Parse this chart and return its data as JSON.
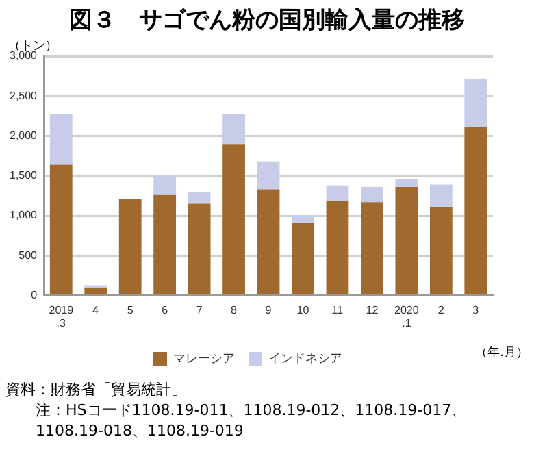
{
  "chart_data": {
    "type": "bar",
    "title": "図３　サゴでん粉の国別輸入量の推移",
    "ylabel": "（トン）",
    "xlabel": "（年.月）",
    "categories": [
      "2019\n.3",
      "4",
      "5",
      "6",
      "7",
      "8",
      "9",
      "10",
      "11",
      "12",
      "2020\n.1",
      "2",
      "3"
    ],
    "stacked": true,
    "series": [
      {
        "name": "マレーシア",
        "color": "#a0692e",
        "values": [
          1640,
          90,
          1210,
          1260,
          1150,
          1890,
          1330,
          910,
          1180,
          1170,
          1360,
          1110,
          2110
        ]
      },
      {
        "name": "インドネシア",
        "color": "#c8cce8",
        "values": [
          640,
          40,
          0,
          250,
          150,
          380,
          350,
          100,
          200,
          190,
          100,
          280,
          600
        ]
      }
    ],
    "ylim": [
      0,
      3000
    ],
    "yticks": [
      0,
      500,
      {
        "value": 1000,
        "label": "1,000"
      },
      {
        "value": 1500,
        "label": "1,500"
      },
      {
        "value": 2000,
        "label": "2,000"
      },
      {
        "value": 2500,
        "label": "2,500"
      },
      {
        "value": 3000,
        "label": "3,000"
      }
    ],
    "grid": "y",
    "legend": "bottom",
    "annotations": [
      "資料：財務省「貿易統計」",
      "注：HSコード1108.19-011、1108.19-012、1108.19-017、1108.19-018、1108.19-019"
    ]
  }
}
